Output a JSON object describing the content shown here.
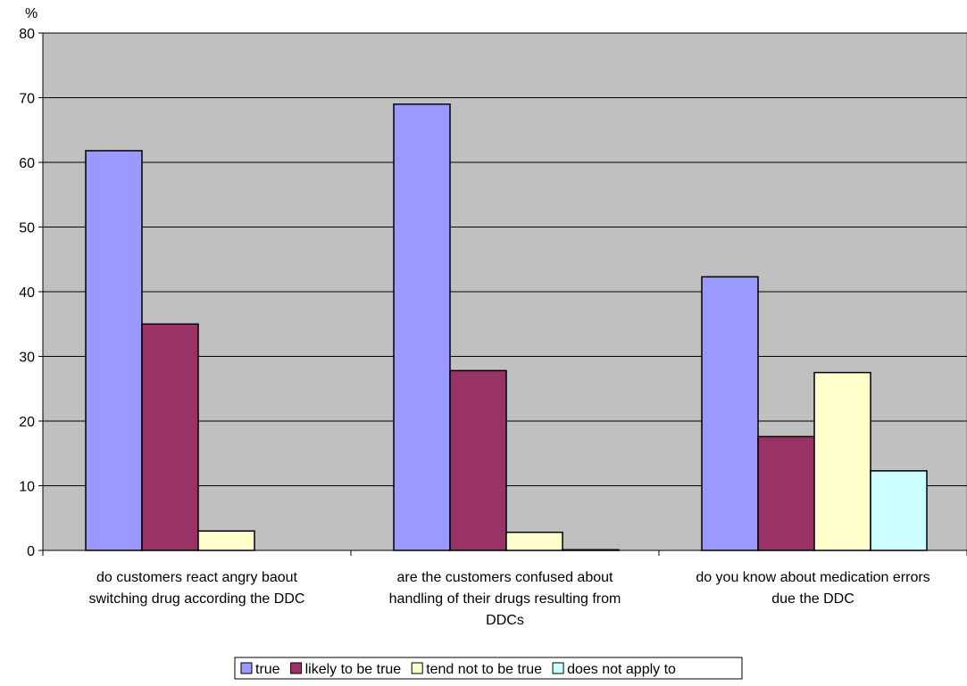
{
  "chart_data": {
    "type": "bar",
    "title": "",
    "xlabel": "",
    "ylabel": "%",
    "ylim": [
      0,
      80
    ],
    "yticks": [
      0,
      10,
      20,
      30,
      40,
      50,
      60,
      70,
      80
    ],
    "grid": true,
    "legend_position": "bottom",
    "plot_background": "#C0C0C0",
    "categories": [
      "do customers react angry baout switching drug according the DDC",
      "are the customers confused about handling of their drugs resulting from DDCs",
      "do you know about medication errors due the DDC"
    ],
    "category_label_lines": [
      [
        "do customers react angry baout",
        "switching drug according the DDC"
      ],
      [
        "are the customers confused about",
        "handling of their drugs resulting from",
        "DDCs"
      ],
      [
        "do you know about medication errors",
        "due the DDC"
      ]
    ],
    "series": [
      {
        "name": "true",
        "color": "#9999FF",
        "values": [
          61.8,
          69.0,
          42.3
        ]
      },
      {
        "name": "likely to be true",
        "color": "#993366",
        "values": [
          35.0,
          27.8,
          17.6
        ]
      },
      {
        "name": "tend not to be true",
        "color": "#FFFFCC",
        "values": [
          3.0,
          2.8,
          27.5
        ]
      },
      {
        "name": "does not apply to",
        "color": "#CCFFFF",
        "values": [
          0,
          0.1,
          12.3
        ]
      }
    ]
  }
}
